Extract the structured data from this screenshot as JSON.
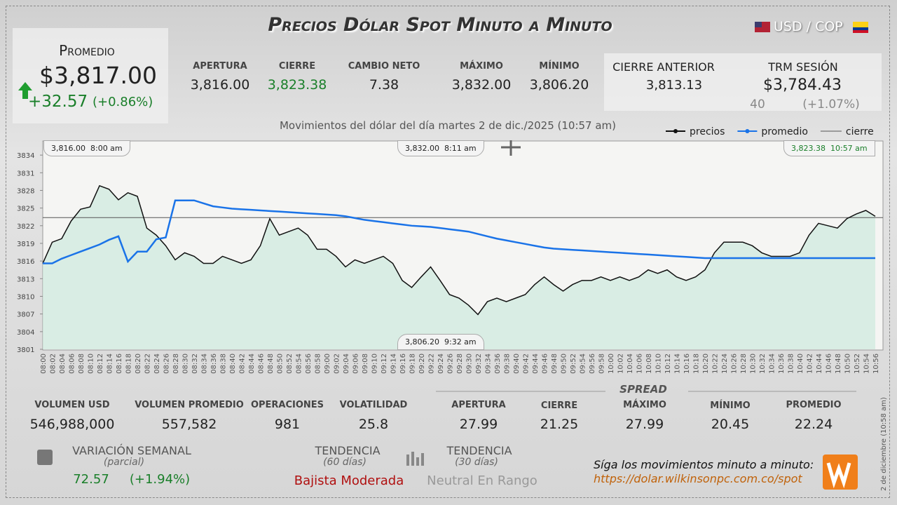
{
  "header": {
    "title": "Precios Dólar Spot Minuto a Minuto",
    "currency": "USD / COP"
  },
  "promedio": {
    "label": "Promedio",
    "value": "$3,817.00",
    "change": "+32.57",
    "change_pct": "(+0.86%)"
  },
  "summary": [
    {
      "label": "APERTURA",
      "value": "3,816.00"
    },
    {
      "label": "CIERRE",
      "value": "3,823.38"
    },
    {
      "label": "CAMBIO NETO",
      "value": "7.38"
    },
    {
      "label": "MÁXIMO",
      "value": "3,832.00"
    },
    {
      "label": "MÍNIMO",
      "value": "3,806.20"
    }
  ],
  "cierre_anterior": {
    "label": "CIERRE ANTERIOR",
    "value": "3,813.13"
  },
  "trm": {
    "label": "TRM SESIÓN",
    "value": "$3,784.43",
    "change": "40",
    "change_pct": "(+1.07%)"
  },
  "chart_data": {
    "type": "line",
    "subtitle": "Movimientos del dólar del día martes 2 de dic./2025 (10:57 am)",
    "categories": [
      "08:00",
      "08:02",
      "08:04",
      "08:06",
      "08:08",
      "08:10",
      "08:12",
      "08:14",
      "08:16",
      "08:18",
      "08:20",
      "08:22",
      "08:24",
      "08:26",
      "08:28",
      "08:30",
      "08:32",
      "08:34",
      "08:36",
      "08:38",
      "08:40",
      "08:42",
      "08:44",
      "08:46",
      "08:48",
      "08:50",
      "08:52",
      "08:54",
      "08:56",
      "08:58",
      "09:00",
      "09:02",
      "09:04",
      "09:06",
      "09:08",
      "09:10",
      "09:12",
      "09:14",
      "09:16",
      "09:18",
      "09:20",
      "09:22",
      "09:24",
      "09:26",
      "09:28",
      "09:30",
      "09:32",
      "09:34",
      "09:36",
      "09:38",
      "09:40",
      "09:42",
      "09:44",
      "09:46",
      "09:48",
      "09:50",
      "09:52",
      "09:54",
      "09:56",
      "09:58",
      "10:00",
      "10:02",
      "10:04",
      "10:06",
      "10:08",
      "10:10",
      "10:12",
      "10:14",
      "10:16",
      "10:18",
      "10:20",
      "10:22",
      "10:24",
      "10:26",
      "10:28",
      "10:30",
      "10:32",
      "10:34",
      "10:36",
      "10:38",
      "10:40",
      "10:42",
      "10:44",
      "10:46",
      "10:48",
      "10:50",
      "10:52",
      "10:54",
      "10:56"
    ],
    "series": [
      {
        "name": "precios",
        "color": "#111111",
        "values": [
          3815.6,
          3819.2,
          3819.8,
          3822.8,
          3824.8,
          3825.2,
          3828.8,
          3828.2,
          3826.4,
          3827.6,
          3827,
          3821.6,
          3820.4,
          3818.6,
          3816.2,
          3817.4,
          3816.8,
          3815.6,
          3815.6,
          3816.8,
          3816.2,
          3815.6,
          3816.2,
          3818.6,
          3823.2,
          3820.4,
          3821,
          3821.6,
          3820.4,
          3818,
          3818,
          3816.8,
          3815,
          3816.2,
          3815.6,
          3816.2,
          3816.8,
          3815.6,
          3812.7,
          3811.5,
          3813.3,
          3815,
          3812.7,
          3810.3,
          3809.7,
          3808.5,
          3806.9,
          3809.1,
          3809.7,
          3809.1,
          3809.7,
          3810.3,
          3812,
          3813.3,
          3812,
          3810.9,
          3812,
          3812.7,
          3812.7,
          3813.3,
          3812.7,
          3813.3,
          3812.7,
          3813.3,
          3814.5,
          3813.9,
          3814.5,
          3813.3,
          3812.7,
          3813.3,
          3814.5,
          3817.4,
          3819.2,
          3819.2,
          3819.2,
          3818.6,
          3817.4,
          3816.8,
          3816.8,
          3816.8,
          3817.4,
          3820.4,
          3822.4,
          3822,
          3821.6,
          3823.2,
          3824,
          3824.6,
          3823.6
        ]
      },
      {
        "name": "promedio",
        "color": "#1a73e8",
        "values": [
          3815.6,
          3815.6,
          3816.4,
          3817,
          3817.6,
          3818.2,
          3818.8,
          3819.6,
          3820.2,
          3815.9,
          3817.6,
          3817.6,
          3819.7,
          3820,
          3826.3,
          3826.3,
          3826.3,
          3825.8,
          3825.3,
          3825.1,
          3824.9,
          3824.8,
          3824.7,
          3824.6,
          3824.5,
          3824.4,
          3824.3,
          3824.2,
          3824.1,
          3824,
          3823.9,
          3823.8,
          3823.6,
          3823.3,
          3823,
          3822.8,
          3822.6,
          3822.4,
          3822.2,
          3822,
          3821.9,
          3821.8,
          3821.6,
          3821.4,
          3821.2,
          3821,
          3820.6,
          3820.2,
          3819.8,
          3819.5,
          3819.2,
          3818.9,
          3818.6,
          3818.3,
          3818.1,
          3818,
          3817.9,
          3817.8,
          3817.7,
          3817.6,
          3817.5,
          3817.4,
          3817.3,
          3817.2,
          3817.1,
          3817,
          3816.9,
          3816.8,
          3816.7,
          3816.6,
          3816.5,
          3816.5,
          3816.5,
          3816.5,
          3816.5,
          3816.5,
          3816.5,
          3816.5,
          3816.5,
          3816.5,
          3816.5,
          3816.5,
          3816.5,
          3816.5,
          3816.5,
          3816.5,
          3816.5,
          3816.5,
          3816.5
        ]
      }
    ],
    "hline": {
      "name": "cierre",
      "value": 3823.38,
      "color": "#555555"
    },
    "ylim": [
      3801,
      3836.4
    ],
    "yticks": [
      3801,
      3804,
      3807,
      3810,
      3813,
      3816,
      3819,
      3822,
      3825,
      3828,
      3831,
      3834
    ],
    "annotations": [
      {
        "value": "3,816.00",
        "time": "8:00 am"
      },
      {
        "value": "3,832.00",
        "time": "8:11 am"
      },
      {
        "value": "3,823.38",
        "time": "10:57 am"
      },
      {
        "value": "3,806.20",
        "time": "9:32 am"
      }
    ]
  },
  "stats": [
    {
      "label": "VOLUMEN USD",
      "value": "546,988,000"
    },
    {
      "label": "VOLUMEN PROMEDIO",
      "value": "557,582"
    },
    {
      "label": "OPERACIONES",
      "value": "981"
    },
    {
      "label": "VOLATILIDAD",
      "value": "25.8"
    }
  ],
  "spread": {
    "title": "SPREAD",
    "items": [
      {
        "label": "APERTURA",
        "value": "27.99"
      },
      {
        "label": "CIERRE",
        "value": "21.25"
      },
      {
        "label": "MÁXIMO",
        "value": "27.99"
      },
      {
        "label": "MÍNIMO",
        "value": "20.45"
      },
      {
        "label": "PROMEDIO",
        "value": "22.24"
      }
    ]
  },
  "weekly": {
    "label": "VARIACIÓN SEMANAL",
    "note": "(parcial)",
    "value": "72.57",
    "pct": "(+1.94%)"
  },
  "trends": [
    {
      "label": "TENDENCIA",
      "note": "(60 días)",
      "value": "Bajista Moderada"
    },
    {
      "label": "TENDENCIA",
      "note": "(30 días)",
      "value": "Neutral En Rango"
    }
  ],
  "footer": {
    "cta": "Síga los movimientos minuto a minuto:",
    "url": "https://dolar.wilkinsonpc.com.co/spot",
    "stamp": "2 de diciembre (10:58 am)"
  }
}
